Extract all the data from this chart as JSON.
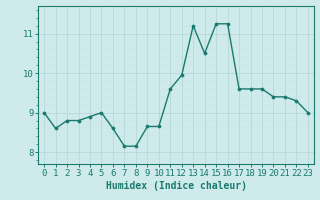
{
  "x": [
    0,
    1,
    2,
    3,
    4,
    5,
    6,
    7,
    8,
    9,
    10,
    11,
    12,
    13,
    14,
    15,
    16,
    17,
    18,
    19,
    20,
    21,
    22,
    23
  ],
  "y": [
    9.0,
    8.6,
    8.8,
    8.8,
    8.9,
    9.0,
    8.6,
    8.15,
    8.15,
    8.65,
    8.65,
    9.6,
    9.95,
    11.2,
    10.5,
    11.25,
    11.25,
    9.6,
    9.6,
    9.6,
    9.4,
    9.4,
    9.3,
    9.0
  ],
  "line_color": "#1a7a6e",
  "marker": "o",
  "marker_size": 2.2,
  "line_width": 1.0,
  "bg_color": "#ceeaea",
  "grid_major_color": "#b8d8d8",
  "grid_minor_color": "#c8e4e4",
  "xlabel": "Humidex (Indice chaleur)",
  "xlabel_fontsize": 7,
  "tick_fontsize": 6.5,
  "ylim": [
    7.7,
    11.7
  ],
  "xlim": [
    -0.5,
    23.5
  ],
  "yticks": [
    8,
    9,
    10,
    11
  ],
  "xticks": [
    0,
    1,
    2,
    3,
    4,
    5,
    6,
    7,
    8,
    9,
    10,
    11,
    12,
    13,
    14,
    15,
    16,
    17,
    18,
    19,
    20,
    21,
    22,
    23
  ]
}
